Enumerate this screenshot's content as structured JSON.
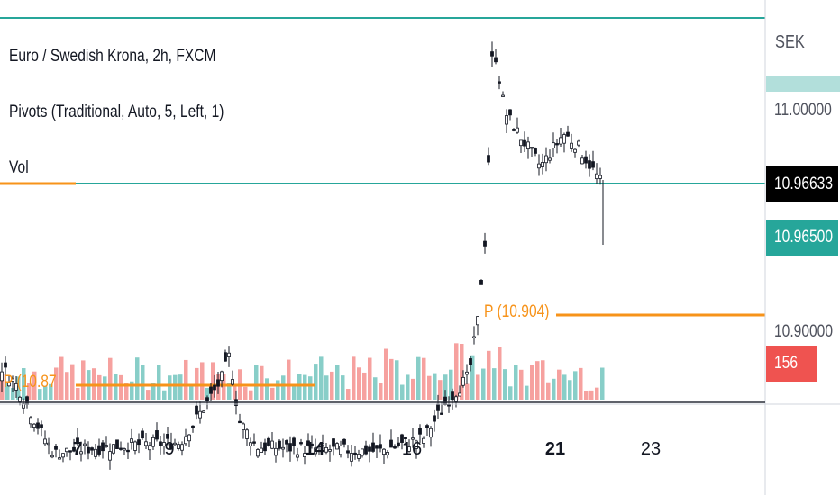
{
  "legend": {
    "symbol": "Euro / Swedish Krona, 2h, FXCM",
    "pivots": "Pivots (Traditional, Auto, 5, Left, 1)",
    "volume": "Vol"
  },
  "price_scale": {
    "currency": "SEK",
    "labels": [
      "11.00000",
      "10.90000"
    ],
    "last_price": "10.96633",
    "bid_price": "10.96500",
    "volume_value": "156"
  },
  "pivot_labels": [
    "P (10.904)",
    "P (10.87"
  ],
  "colors": {
    "up": "#26a69a",
    "down": "#ef5350",
    "pivot": "#f7931a",
    "level": "#26a69a",
    "candle": "#131722"
  },
  "chart_data": {
    "type": "candlestick",
    "title": "Euro / Swedish Krona, 2h, FXCM",
    "x_ticks": [
      {
        "label": "7",
        "bold": true
      },
      {
        "label": "9",
        "bold": false
      },
      {
        "label": "14",
        "bold": true
      },
      {
        "label": "16",
        "bold": false
      },
      {
        "label": "21",
        "bold": true
      },
      {
        "label": "23",
        "bold": false
      }
    ],
    "y_axis_labels": [
      11.0,
      10.9
    ],
    "horizontal_levels": [
      11.04,
      10.966
    ],
    "pivot_levels": [
      {
        "label": "P (10.904)",
        "value": 10.904
      },
      {
        "label": "P (10.87",
        "value": 10.87
      }
    ],
    "last_price": 10.96633,
    "last_volume": 156,
    "series": [
      {
        "name": "Euro / Swedish Krona, 2h, FXCM",
        "close_values": [
          10.889,
          10.873,
          10.865,
          10.855,
          10.85,
          10.847,
          10.852,
          10.864,
          10.897,
          10.897,
          10.908,
          10.943,
          10.949,
          10.951,
          10.982,
          11.023,
          11.025,
          11.004,
          10.992,
          10.99,
          10.994,
          10.981,
          10.997,
          10.971,
          10.967
        ]
      }
    ]
  }
}
